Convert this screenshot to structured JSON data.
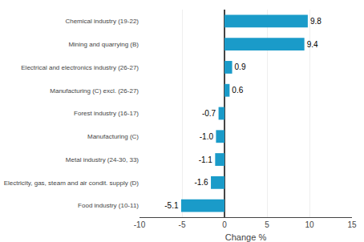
{
  "chart_data": {
    "type": "bar",
    "orientation": "horizontal",
    "xlabel": "Change %",
    "categories": [
      "Chemical industry (19-22)",
      "Mining and quarrying (B)",
      "Electrical and electronics industry (26-27)",
      "Manufacturing (C) excl. (26-27)",
      "Forest industry (16-17)",
      "Manufacturing (C)",
      "Metal industry (24-30, 33)",
      "Electricity, gas, steam and air condit. supply (D)",
      "Food industry (10-11)"
    ],
    "values": [
      9.8,
      9.4,
      0.9,
      0.6,
      -0.7,
      -1.0,
      -1.1,
      -1.6,
      -5.1
    ],
    "value_labels": [
      "9.8",
      "9.4",
      "0.9",
      "0.6",
      "-0.7",
      "-1.0",
      "-1.1",
      "-1.6",
      "-5.1"
    ],
    "color": "#1a9bc9",
    "xlim": [
      -10,
      15
    ],
    "xticks": [
      -10,
      -5,
      0,
      5,
      10,
      15
    ],
    "grid": true,
    "data_labels": true
  }
}
